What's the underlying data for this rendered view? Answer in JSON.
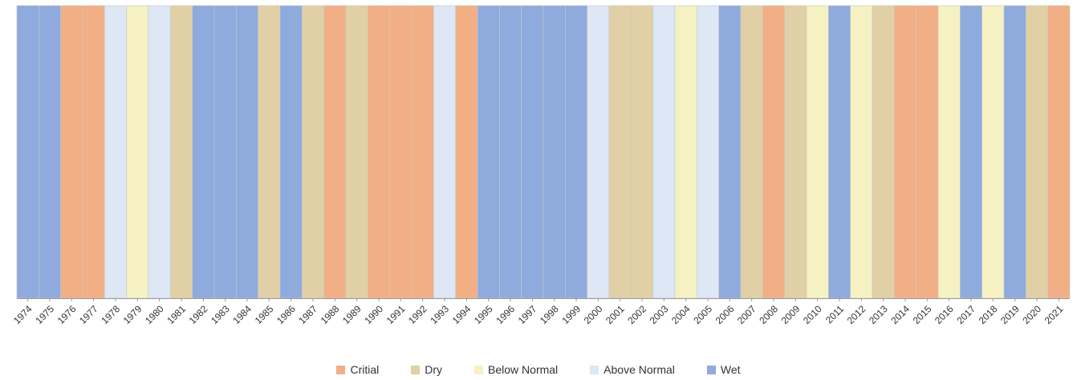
{
  "chart_data": {
    "type": "bar",
    "title": "",
    "xlabel": "",
    "ylabel": "",
    "grid": false,
    "legend_position": "bottom-center",
    "categories": [
      "Critial",
      "Dry",
      "Below Normal",
      "Above Normal",
      "Wet"
    ],
    "colors": {
      "Critial": "#f2ae84",
      "Dry": "#e1d0a6",
      "Below Normal": "#f6f1c3",
      "Above Normal": "#dde7f5",
      "Wet": "#8faadd"
    },
    "years": [
      {
        "year": "1974",
        "class": "Wet"
      },
      {
        "year": "1975",
        "class": "Wet"
      },
      {
        "year": "1976",
        "class": "Critial"
      },
      {
        "year": "1977",
        "class": "Critial"
      },
      {
        "year": "1978",
        "class": "Above Normal"
      },
      {
        "year": "1979",
        "class": "Below Normal"
      },
      {
        "year": "1980",
        "class": "Above Normal"
      },
      {
        "year": "1981",
        "class": "Dry"
      },
      {
        "year": "1982",
        "class": "Wet"
      },
      {
        "year": "1983",
        "class": "Wet"
      },
      {
        "year": "1984",
        "class": "Wet"
      },
      {
        "year": "1985",
        "class": "Dry"
      },
      {
        "year": "1986",
        "class": "Wet"
      },
      {
        "year": "1987",
        "class": "Dry"
      },
      {
        "year": "1988",
        "class": "Critial"
      },
      {
        "year": "1989",
        "class": "Dry"
      },
      {
        "year": "1990",
        "class": "Critial"
      },
      {
        "year": "1991",
        "class": "Critial"
      },
      {
        "year": "1992",
        "class": "Critial"
      },
      {
        "year": "1993",
        "class": "Above Normal"
      },
      {
        "year": "1994",
        "class": "Critial"
      },
      {
        "year": "1995",
        "class": "Wet"
      },
      {
        "year": "1996",
        "class": "Wet"
      },
      {
        "year": "1997",
        "class": "Wet"
      },
      {
        "year": "1998",
        "class": "Wet"
      },
      {
        "year": "1999",
        "class": "Wet"
      },
      {
        "year": "2000",
        "class": "Above Normal"
      },
      {
        "year": "2001",
        "class": "Dry"
      },
      {
        "year": "2002",
        "class": "Dry"
      },
      {
        "year": "2003",
        "class": "Above Normal"
      },
      {
        "year": "2004",
        "class": "Below Normal"
      },
      {
        "year": "2005",
        "class": "Above Normal"
      },
      {
        "year": "2006",
        "class": "Wet"
      },
      {
        "year": "2007",
        "class": "Dry"
      },
      {
        "year": "2008",
        "class": "Critial"
      },
      {
        "year": "2009",
        "class": "Dry"
      },
      {
        "year": "2010",
        "class": "Below Normal"
      },
      {
        "year": "2011",
        "class": "Wet"
      },
      {
        "year": "2012",
        "class": "Below Normal"
      },
      {
        "year": "2013",
        "class": "Dry"
      },
      {
        "year": "2014",
        "class": "Critial"
      },
      {
        "year": "2015",
        "class": "Critial"
      },
      {
        "year": "2016",
        "class": "Below Normal"
      },
      {
        "year": "2017",
        "class": "Wet"
      },
      {
        "year": "2018",
        "class": "Below Normal"
      },
      {
        "year": "2019",
        "class": "Wet"
      },
      {
        "year": "2020",
        "class": "Dry"
      },
      {
        "year": "2021",
        "class": "Critial"
      }
    ],
    "legend": [
      {
        "label": "Critial",
        "color": "#f2ae84"
      },
      {
        "label": "Dry",
        "color": "#e1d0a6"
      },
      {
        "label": "Below Normal",
        "color": "#f6f1c3"
      },
      {
        "label": "Above Normal",
        "color": "#dde7f5"
      },
      {
        "label": "Wet",
        "color": "#8faadd"
      }
    ]
  }
}
